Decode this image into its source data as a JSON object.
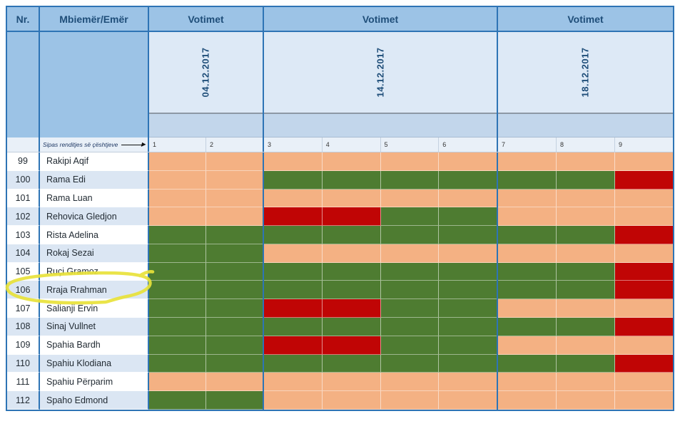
{
  "chart_data": {
    "type": "table",
    "title": "Votimet",
    "columns": {
      "nr_header": "Nr.",
      "name_header": "Mbiemër/Emër",
      "group_header": "Votimet",
      "vote_columns": [
        "1",
        "2",
        "3",
        "4",
        "5",
        "6",
        "7",
        "8",
        "9"
      ],
      "date_groups": [
        {
          "date": "04.12.2017",
          "columns": [
            "1",
            "2"
          ]
        },
        {
          "date": "14.12.2017",
          "columns": [
            "3",
            "4",
            "5",
            "6"
          ]
        },
        {
          "date": "18.12.2017",
          "columns": [
            "7",
            "8",
            "9"
          ]
        }
      ]
    },
    "order_note": "Sipas renditjes së  çështjeve",
    "cell_colors": {
      "green": "#4e7c31",
      "red": "#c00505",
      "orange": "#f4b183"
    },
    "rows": [
      {
        "nr": "99",
        "name": "Rakipi Aqif",
        "votes": [
          "orange",
          "orange",
          "orange",
          "orange",
          "orange",
          "orange",
          "orange",
          "orange",
          "orange"
        ]
      },
      {
        "nr": "100",
        "name": "Rama Edi",
        "votes": [
          "orange",
          "orange",
          "green",
          "green",
          "green",
          "green",
          "green",
          "green",
          "red"
        ]
      },
      {
        "nr": "101",
        "name": "Rama Luan",
        "votes": [
          "orange",
          "orange",
          "orange",
          "orange",
          "orange",
          "orange",
          "orange",
          "orange",
          "orange"
        ]
      },
      {
        "nr": "102",
        "name": "Rehovica Gledjon",
        "votes": [
          "orange",
          "orange",
          "red",
          "red",
          "green",
          "green",
          "orange",
          "orange",
          "orange"
        ]
      },
      {
        "nr": "103",
        "name": "Rista Adelina",
        "votes": [
          "green",
          "green",
          "green",
          "green",
          "green",
          "green",
          "green",
          "green",
          "red"
        ]
      },
      {
        "nr": "104",
        "name": "Rokaj Sezai",
        "votes": [
          "green",
          "green",
          "orange",
          "orange",
          "orange",
          "orange",
          "orange",
          "orange",
          "orange"
        ]
      },
      {
        "nr": "105",
        "name": "Ruçi Gramoz",
        "votes": [
          "green",
          "green",
          "green",
          "green",
          "green",
          "green",
          "green",
          "green",
          "red"
        ]
      },
      {
        "nr": "106",
        "name": "Rraja Rrahman",
        "votes": [
          "green",
          "green",
          "green",
          "green",
          "green",
          "green",
          "green",
          "green",
          "red"
        ]
      },
      {
        "nr": "107",
        "name": "Salianji Ervin",
        "votes": [
          "green",
          "green",
          "red",
          "red",
          "green",
          "green",
          "orange",
          "orange",
          "orange"
        ]
      },
      {
        "nr": "108",
        "name": "Sinaj Vullnet",
        "votes": [
          "green",
          "green",
          "green",
          "green",
          "green",
          "green",
          "green",
          "green",
          "red"
        ]
      },
      {
        "nr": "109",
        "name": "Spahia Bardh",
        "votes": [
          "green",
          "green",
          "red",
          "red",
          "green",
          "green",
          "orange",
          "orange",
          "orange"
        ]
      },
      {
        "nr": "110",
        "name": "Spahiu Klodiana",
        "votes": [
          "green",
          "green",
          "green",
          "green",
          "green",
          "green",
          "green",
          "green",
          "red"
        ]
      },
      {
        "nr": "111",
        "name": "Spahiu Përparim",
        "votes": [
          "orange",
          "orange",
          "orange",
          "orange",
          "orange",
          "orange",
          "orange",
          "orange",
          "orange"
        ]
      },
      {
        "nr": "112",
        "name": "Spaho Edmond",
        "votes": [
          "green",
          "green",
          "orange",
          "orange",
          "orange",
          "orange",
          "orange",
          "orange",
          "orange"
        ]
      }
    ],
    "highlight": {
      "shape": "hand-drawn-ellipse",
      "color": "#e8e23a",
      "row_nr": "106",
      "row_name": "Rraja Rrahman"
    },
    "layout": {
      "header_bg": "#9cc3e6",
      "date_area_bg": "#dde9f6",
      "band_bg": "#c2d6eb",
      "numbers_row_bg": "#e9f0f8",
      "alt_row_bg": "#dbe6f3",
      "border_color": "#2e74b5",
      "header_text_color": "#1f4e79"
    }
  }
}
